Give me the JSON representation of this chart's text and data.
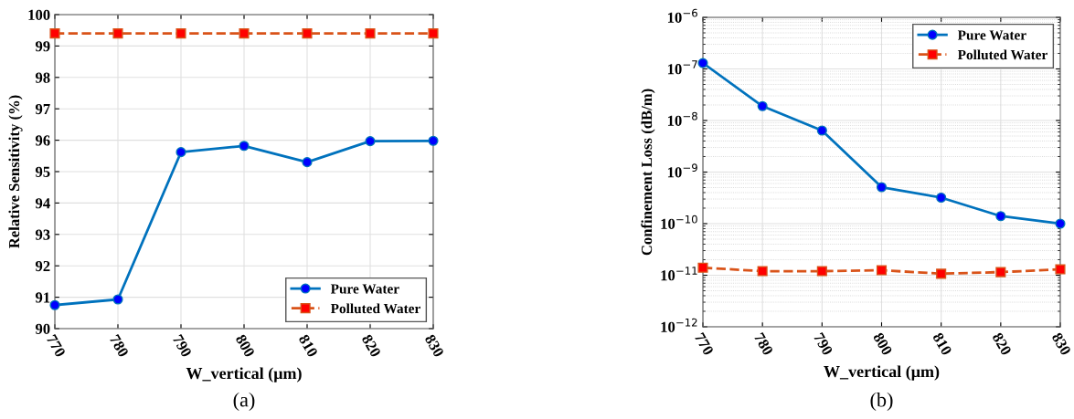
{
  "chart_data": [
    {
      "type": "line",
      "xlabel": "W_vertical (μm)",
      "ylabel": "Relative Sensitivity (%)",
      "x": [
        770,
        780,
        790,
        800,
        810,
        820,
        830
      ],
      "series": [
        {
          "name": "Pure Water",
          "color": "#0072bd",
          "values": [
            90.75,
            90.93,
            95.62,
            95.82,
            95.3,
            95.97,
            95.98
          ],
          "marker": "circle",
          "line_style": "solid"
        },
        {
          "name": "Polluted Water",
          "color": "#d95319",
          "values": [
            99.4,
            99.4,
            99.4,
            99.4,
            99.4,
            99.4,
            99.4
          ],
          "marker": "square",
          "line_style": "dashed"
        }
      ],
      "xlim": [
        770,
        830
      ],
      "xticks": [
        770,
        780,
        790,
        800,
        810,
        820,
        830
      ],
      "ylim": [
        90,
        100
      ],
      "yticks": [
        90,
        91,
        92,
        93,
        94,
        95,
        96,
        97,
        98,
        99,
        100
      ],
      "grid": true,
      "legend": "bottom right",
      "annotations": [
        "(a)"
      ]
    },
    {
      "type": "line",
      "xlabel": "W_vertical (μm)",
      "ylabel": "Confinement Loss (dB/m)",
      "x": [
        770,
        780,
        790,
        800,
        810,
        820,
        830
      ],
      "log": "y",
      "series": [
        {
          "name": "Pure Water",
          "color": "#0072bd",
          "values": [
            1.3e-07,
            1.9e-08,
            6.4e-09,
            5.1e-10,
            3.2e-10,
            1.4e-10,
            1e-10
          ],
          "marker": "circle",
          "line_style": "solid"
        },
        {
          "name": "Polluted Water",
          "color": "#d95319",
          "values": [
            1.4e-11,
            1.2e-11,
            1.2e-11,
            1.25e-11,
            1.07e-11,
            1.15e-11,
            1.3e-11
          ],
          "marker": "square",
          "line_style": "dashed"
        }
      ],
      "xlim": [
        770,
        830
      ],
      "xticks": [
        770,
        780,
        790,
        800,
        810,
        820,
        830
      ],
      "ylim": [
        1e-12,
        1e-06
      ],
      "yticks": [
        {
          "value": 1e-12,
          "label": "10$^{−12}$"
        },
        {
          "value": 1e-11,
          "label": "10$^{−11}$"
        },
        {
          "value": 1e-10,
          "label": "10$^{−10}$"
        },
        {
          "value": 1e-09,
          "label": "10$^{−9}$"
        },
        {
          "value": 1e-08,
          "label": "10$^{−8}$"
        },
        {
          "value": 1e-07,
          "label": "10$^{−7}$"
        },
        {
          "value": 1e-06,
          "label": "10$^{−6}$"
        }
      ],
      "grid": true,
      "legend": "top right",
      "annotations": [
        "(b)"
      ]
    }
  ]
}
